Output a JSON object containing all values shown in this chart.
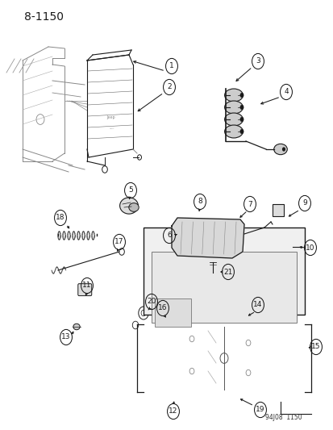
{
  "title": "8-1150",
  "background_color": "#ffffff",
  "line_color": "#1a1a1a",
  "footer_text": "94J08  1150",
  "fig_w": 4.14,
  "fig_h": 5.33,
  "dpi": 100
}
